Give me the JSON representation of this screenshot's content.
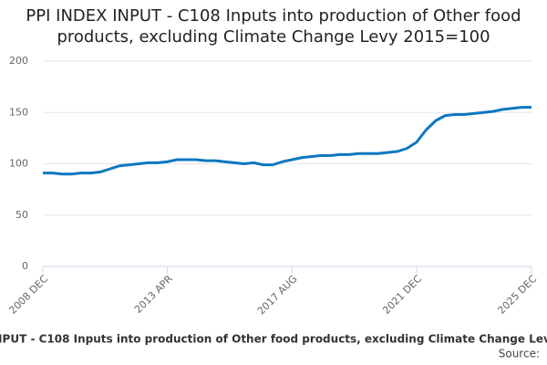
{
  "chart_data": {
    "type": "line",
    "title": "PPI INDEX INPUT - C108 Inputs into production of Other food products, excluding Climate Change Levy 2015=100",
    "categories": [
      "2008 DEC",
      null,
      null,
      null,
      null,
      null,
      null,
      null,
      null,
      null,
      null,
      null,
      null,
      "2013 APR",
      null,
      null,
      null,
      null,
      null,
      null,
      null,
      null,
      null,
      null,
      null,
      null,
      "2017 AUG",
      null,
      null,
      null,
      null,
      null,
      null,
      null,
      null,
      null,
      null,
      null,
      null,
      "2021 DEC",
      null,
      null,
      null,
      null,
      null,
      null,
      null,
      null,
      null,
      null,
      null,
      "2025 DEC"
    ],
    "series": [
      {
        "name": "PPI INDEX INPUT - C108 Inputs into production of Other food products, excluding Climate Change Levy 2015=100",
        "color": "#0d78c0",
        "values": [
          91,
          91,
          90,
          90,
          91,
          91,
          92,
          95,
          98,
          99,
          100,
          101,
          101,
          102,
          104,
          104,
          104,
          103,
          103,
          102,
          101,
          100,
          101,
          99,
          99,
          102,
          104,
          106,
          107,
          108,
          108,
          109,
          109,
          110,
          110,
          110,
          111,
          112,
          115,
          121,
          133,
          142,
          147,
          148,
          148,
          149,
          150,
          151,
          153,
          154,
          155,
          155
        ]
      }
    ],
    "ylim": [
      0,
      200
    ],
    "yticks": [
      0,
      50,
      100,
      150,
      200
    ],
    "grid": true,
    "source": "Source:"
  }
}
